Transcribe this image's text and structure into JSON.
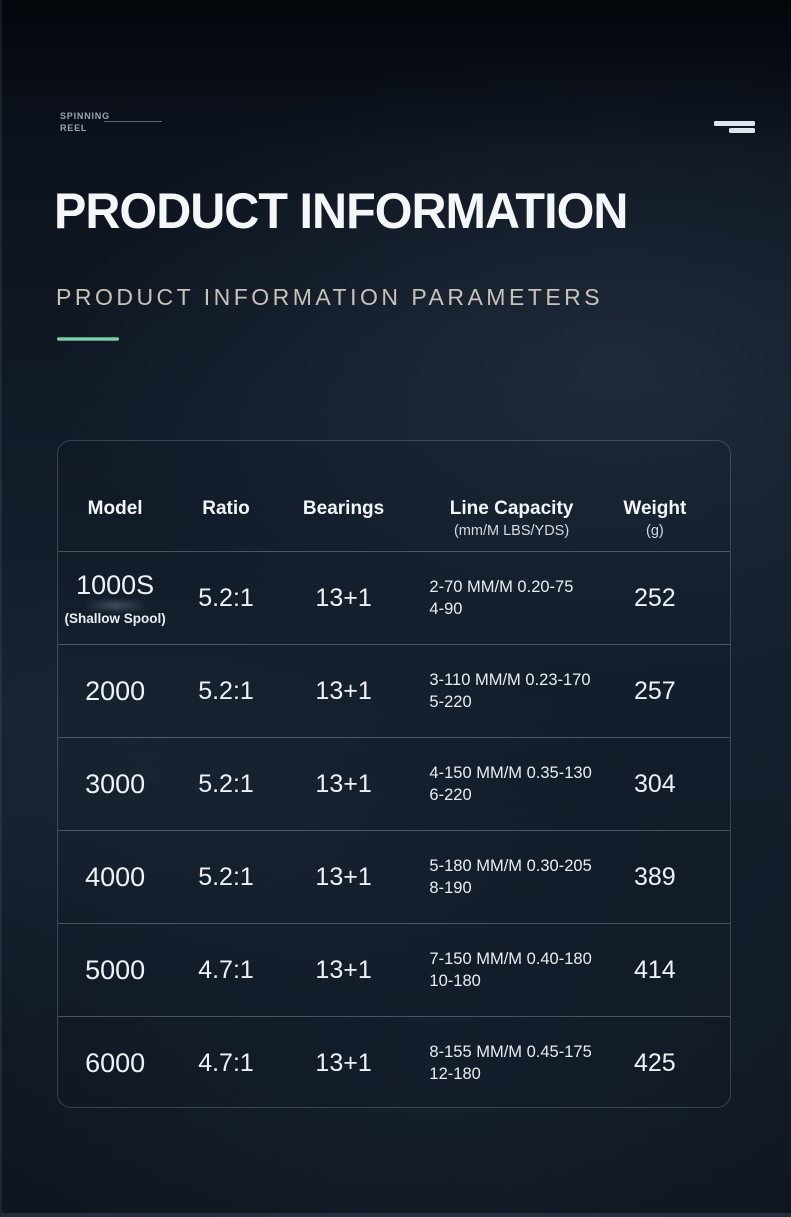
{
  "page": {
    "brand_tag_line1": "SPINNING",
    "brand_tag_line2": "REEL",
    "title": "PRODUCT INFORMATION",
    "subtitle": "PRODUCT INFORMATION PARAMETERS"
  },
  "colors": {
    "background": "#111a27",
    "accent": "#5ecf9a",
    "text": "#eef1f5",
    "subtitle_text": "#c9c2b6"
  },
  "icons": {
    "menu": "double-bar-menu-icon"
  },
  "table": {
    "columns": [
      {
        "label": "Model",
        "sub": ""
      },
      {
        "label": "Ratio",
        "sub": ""
      },
      {
        "label": "Bearings",
        "sub": ""
      },
      {
        "label": "Line Capacity",
        "sub": "(mm/M LBS/YDS)"
      },
      {
        "label": "Weight",
        "sub": "(g)"
      }
    ],
    "rows": [
      {
        "model": "1000S",
        "model_note": "(Shallow Spool)",
        "ratio": "5.2:1",
        "bearings": "13+1",
        "line_capacity_1": "2-70 MM/M 0.20-75",
        "line_capacity_2": "4-90",
        "weight": "252"
      },
      {
        "model": "2000",
        "model_note": "",
        "ratio": "5.2:1",
        "bearings": "13+1",
        "line_capacity_1": "3-110 MM/M 0.23-170",
        "line_capacity_2": "5-220",
        "weight": "257"
      },
      {
        "model": "3000",
        "model_note": "",
        "ratio": "5.2:1",
        "bearings": "13+1",
        "line_capacity_1": "4-150 MM/M 0.35-130",
        "line_capacity_2": "6-220",
        "weight": "304"
      },
      {
        "model": "4000",
        "model_note": "",
        "ratio": "5.2:1",
        "bearings": "13+1",
        "line_capacity_1": "5-180 MM/M 0.30-205",
        "line_capacity_2": "8-190",
        "weight": "389"
      },
      {
        "model": "5000",
        "model_note": "",
        "ratio": "4.7:1",
        "bearings": "13+1",
        "line_capacity_1": "7-150 MM/M 0.40-180",
        "line_capacity_2": "10-180",
        "weight": "414"
      },
      {
        "model": "6000",
        "model_note": "",
        "ratio": "4.7:1",
        "bearings": "13+1",
        "line_capacity_1": "8-155 MM/M 0.45-175",
        "line_capacity_2": "12-180",
        "weight": "425"
      }
    ]
  }
}
